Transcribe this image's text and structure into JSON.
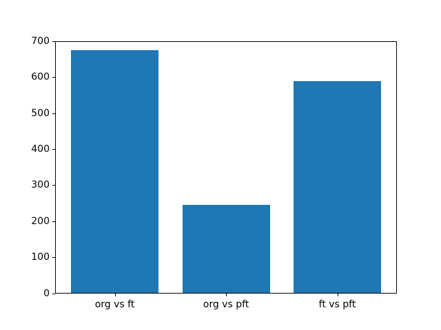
{
  "figure": {
    "background_color": "#ffffff",
    "spine_color": "#000000",
    "tick_color": "#000000"
  },
  "chart_data": {
    "type": "bar",
    "categories": [
      "org vs ft",
      "org vs pft",
      "ft vs pft"
    ],
    "values": [
      676,
      245,
      590
    ],
    "title": "",
    "xlabel": "",
    "ylabel": "",
    "ylim": [
      0,
      700
    ],
    "yticks": [
      0,
      100,
      200,
      300,
      400,
      500,
      600,
      700
    ],
    "bar_color": "#1f77b4",
    "grid": false,
    "legend_position": "none"
  }
}
